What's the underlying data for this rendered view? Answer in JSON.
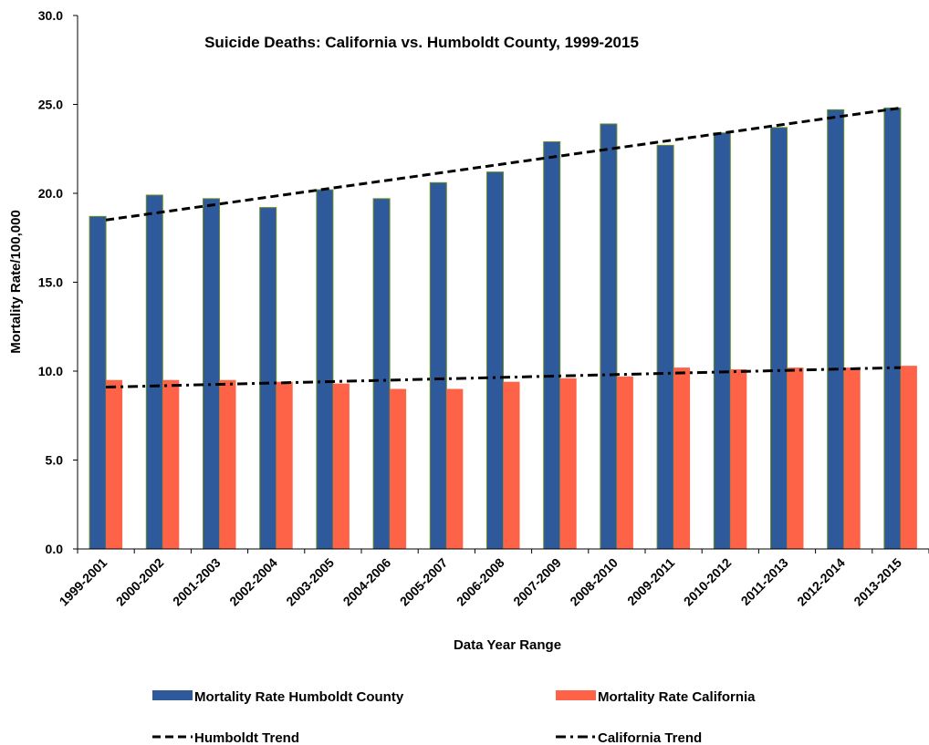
{
  "chart_data": {
    "type": "bar",
    "title": "Suicide Deaths:  California vs. Humboldt County, 1999-2015",
    "xlabel": "Data Year Range",
    "ylabel": "Mortality Rate/100,000",
    "ylim": [
      0,
      30
    ],
    "yticks": [
      "0.0",
      "5.0",
      "10.0",
      "15.0",
      "20.0",
      "25.0",
      "30.0"
    ],
    "grid": false,
    "legend_position": "bottom",
    "categories": [
      "1999-2001",
      "2000-2002",
      "2001-2003",
      "2002-2004",
      "2003-2005",
      "2004-2006",
      "2005-2007",
      "2006-2008",
      "2007-2009",
      "2008-2010",
      "2009-2011",
      "2010-2012",
      "2011-2013",
      "2012-2014",
      "2013-2015"
    ],
    "series": [
      {
        "name": "Mortality Rate Humboldt County",
        "kind": "bar",
        "color": "#2E5A9C",
        "values": [
          18.7,
          19.9,
          19.7,
          19.2,
          20.2,
          19.7,
          20.6,
          21.2,
          22.9,
          23.9,
          22.7,
          23.4,
          23.7,
          24.7,
          24.8
        ]
      },
      {
        "name": "Mortality Rate California",
        "kind": "bar",
        "color": "#FF6347",
        "values": [
          9.5,
          9.5,
          9.5,
          9.4,
          9.3,
          9.0,
          9.0,
          9.4,
          9.6,
          9.7,
          10.2,
          10.1,
          10.2,
          10.2,
          10.3
        ]
      },
      {
        "name": "Humboldt Trend",
        "kind": "trendline",
        "dash": "dashed",
        "color": "#000000",
        "start": 18.5,
        "end": 24.8
      },
      {
        "name": "California Trend",
        "kind": "trendline",
        "dash": "dash-dot",
        "color": "#000000",
        "start": 9.1,
        "end": 10.2
      }
    ]
  }
}
